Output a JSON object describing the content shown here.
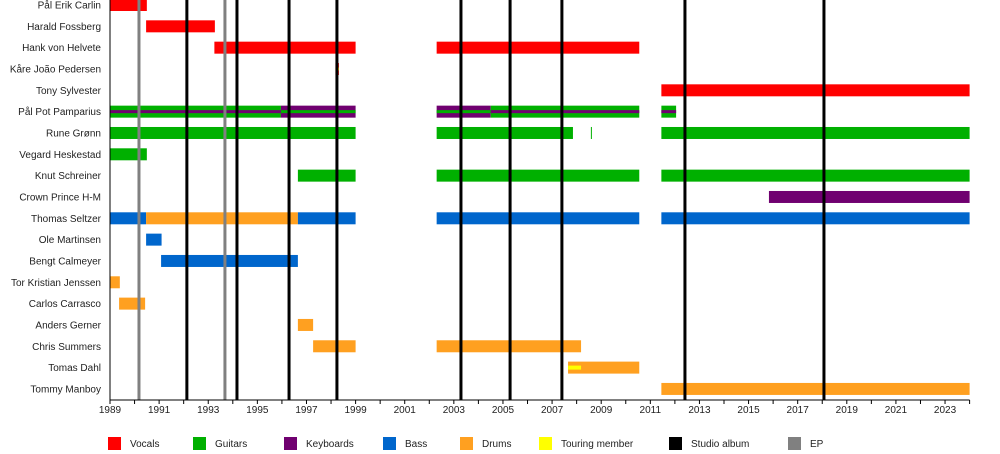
{
  "chart_data": {
    "type": "timeline",
    "x_range": [
      1989,
      2024
    ],
    "x_ticks": [
      1989,
      1991,
      1993,
      1995,
      1997,
      1999,
      2001,
      2003,
      2005,
      2007,
      2009,
      2011,
      2013,
      2015,
      2017,
      2019,
      2021,
      2023
    ],
    "colors": {
      "Vocals": "#ff0000",
      "Guitars": "#00b000",
      "Keyboards": "#700070",
      "Bass": "#0066cc",
      "Drums": "#ffa020",
      "Touring member": "#ffff00",
      "Studio album": "#000000",
      "EP": "#808080"
    },
    "legend": [
      "Vocals",
      "Guitars",
      "Keyboards",
      "Bass",
      "Drums",
      "Touring member",
      "Studio album",
      "EP"
    ],
    "legend_placement": "bottom",
    "members": [
      {
        "name": "Pål Erik Carlin",
        "bars": [
          {
            "role": "Vocals",
            "from": 1989,
            "to": 1990.5
          }
        ]
      },
      {
        "name": "Harald Fossberg",
        "bars": [
          {
            "role": "Vocals",
            "from": 1990.47,
            "to": 1993.27
          }
        ]
      },
      {
        "name": "Hank von Helvete",
        "bars": [
          {
            "role": "Vocals",
            "from": 1993.25,
            "to": 1999.0
          },
          {
            "role": "Vocals",
            "from": 2002.3,
            "to": 2010.55
          }
        ]
      },
      {
        "name": "Kåre João Pedersen",
        "bars": [
          {
            "role": "Vocals",
            "from": 1998.18,
            "to": 1998.32,
            "touring": true
          }
        ]
      },
      {
        "name": "Tony Sylvester",
        "bars": [
          {
            "role": "Vocals",
            "from": 2011.45,
            "to": 2024
          }
        ]
      },
      {
        "name": "Pål Pot Pamparius",
        "bars": [
          {
            "role": "Guitars",
            "stripe": "Keyboards",
            "from": 1989,
            "to": 1995.96
          },
          {
            "role": "Keyboards",
            "stripe": "Guitars",
            "from": 1995.96,
            "to": 1999.0
          },
          {
            "role": "Keyboards",
            "stripe": "Guitars",
            "from": 2002.3,
            "to": 2004.5
          },
          {
            "role": "Guitars",
            "stripe": "Keyboards",
            "from": 2004.5,
            "to": 2010.55
          },
          {
            "role": "Guitars",
            "stripe": "Keyboards",
            "from": 2011.45,
            "to": 2012.05
          }
        ]
      },
      {
        "name": "Rune Grønn",
        "bars": [
          {
            "role": "Guitars",
            "from": 1989,
            "to": 1999.0
          },
          {
            "role": "Guitars",
            "from": 2002.3,
            "to": 2007.85
          },
          {
            "role": "Guitars",
            "from": 2008.58,
            "to": 2008.62
          },
          {
            "role": "Guitars",
            "from": 2011.45,
            "to": 2024
          }
        ]
      },
      {
        "name": "Vegard Heskestad",
        "bars": [
          {
            "role": "Guitars",
            "from": 1989,
            "to": 1990.5
          }
        ]
      },
      {
        "name": "Knut Schreiner",
        "bars": [
          {
            "role": "Guitars",
            "from": 1996.65,
            "to": 1999.0
          },
          {
            "role": "Guitars",
            "from": 2002.3,
            "to": 2010.55
          },
          {
            "role": "Guitars",
            "from": 2011.45,
            "to": 2024
          }
        ]
      },
      {
        "name": "Crown Prince H-M",
        "bars": [
          {
            "role": "Keyboards",
            "from": 2015.83,
            "to": 2024
          }
        ]
      },
      {
        "name": "Thomas Seltzer",
        "bars": [
          {
            "role": "Bass",
            "from": 1989,
            "to": 1990.47
          },
          {
            "role": "Drums",
            "from": 1990.47,
            "to": 1996.65
          },
          {
            "role": "Bass",
            "from": 1996.65,
            "to": 1999.0
          },
          {
            "role": "Bass",
            "from": 2002.3,
            "to": 2010.55
          },
          {
            "role": "Bass",
            "from": 2011.45,
            "to": 2024
          }
        ]
      },
      {
        "name": "Ole Martinsen",
        "bars": [
          {
            "role": "Bass",
            "from": 1990.47,
            "to": 1991.1
          }
        ]
      },
      {
        "name": "Bengt Calmeyer",
        "bars": [
          {
            "role": "Bass",
            "from": 1991.08,
            "to": 1996.65
          }
        ]
      },
      {
        "name": "Tor Kristian Jenssen",
        "bars": [
          {
            "role": "Drums",
            "from": 1989,
            "to": 1989.4
          }
        ]
      },
      {
        "name": "Carlos Carrasco",
        "bars": [
          {
            "role": "Drums",
            "from": 1989.37,
            "to": 1990.43
          }
        ]
      },
      {
        "name": "Anders Gerner",
        "bars": [
          {
            "role": "Drums",
            "from": 1996.65,
            "to": 1997.27
          }
        ]
      },
      {
        "name": "Chris Summers",
        "bars": [
          {
            "role": "Drums",
            "from": 1997.27,
            "to": 1999.0
          },
          {
            "role": "Drums",
            "from": 2002.3,
            "to": 2008.18
          }
        ]
      },
      {
        "name": "Tomas Dahl",
        "bars": [
          {
            "role": "Drums",
            "from": 2007.65,
            "to": 2010.55,
            "touring_to": 2008.18
          }
        ]
      },
      {
        "name": "Tommy Manboy",
        "bars": [
          {
            "role": "Drums",
            "from": 2011.45,
            "to": 2024
          }
        ]
      }
    ],
    "studio_albums": [
      1992.13,
      1994.17,
      1996.29,
      1998.24,
      2003.29,
      2005.29,
      2007.4,
      2012.41,
      2018.07
    ],
    "eps": [
      1990.18,
      1993.68
    ]
  }
}
